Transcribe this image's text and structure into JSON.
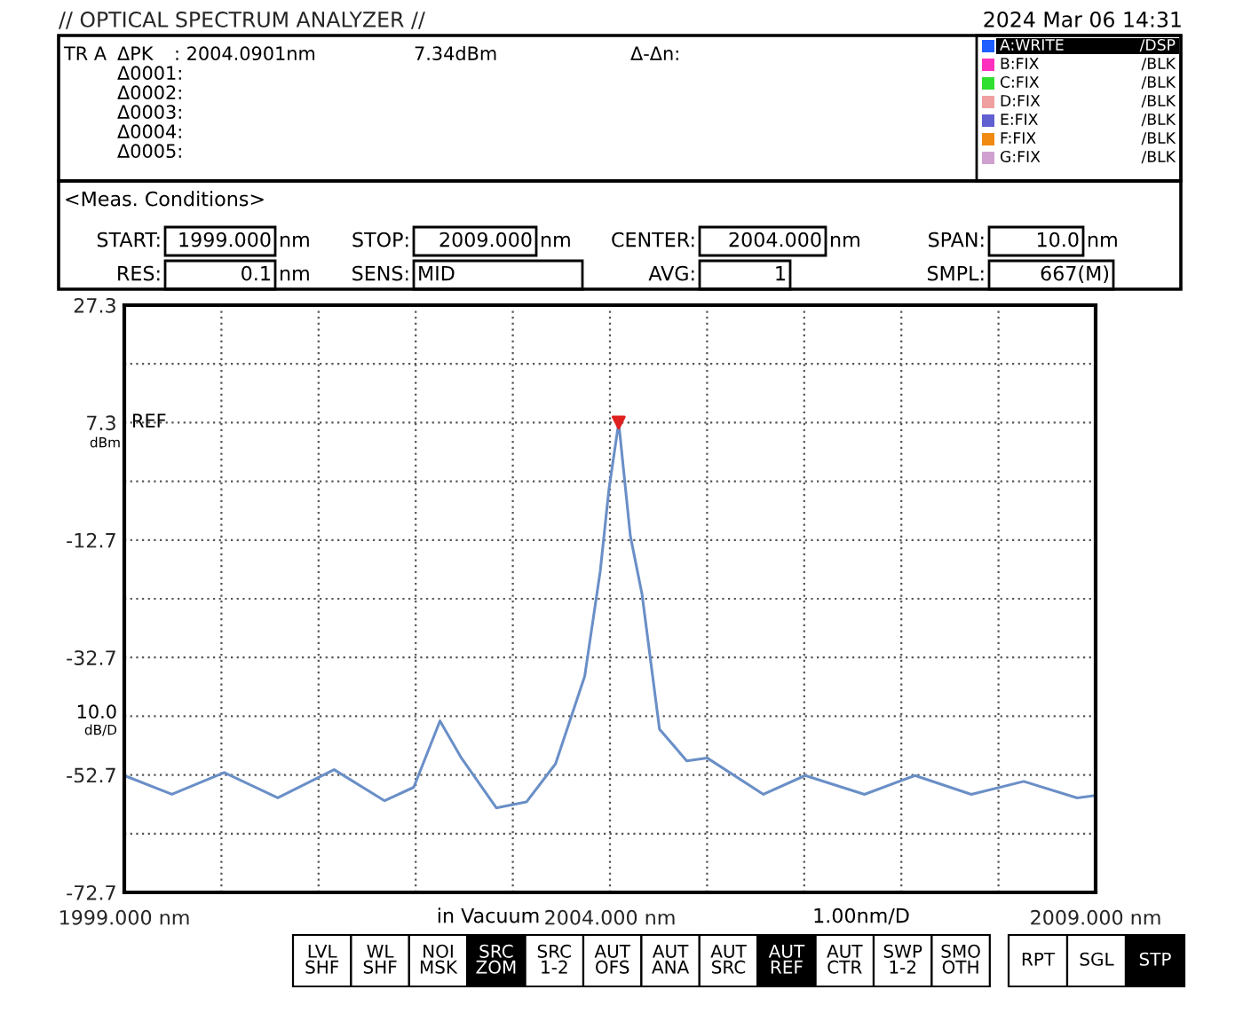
{
  "chart_data": {
    "type": "line",
    "title": "// OPTICAL SPECTRUM ANALYZER //",
    "annotations": [
      "2024 Mar 06 14:31",
      "TR A",
      "ΔPK",
      ": 2004.0901nm",
      "7.34dBm",
      "Δ-Δn:",
      "Δ0001:",
      "Δ0002:",
      "Δ0003:",
      "Δ0004:",
      "Δ0005:",
      "A:WRITE",
      "/DSP",
      "B:FIX",
      "/BLK",
      "C:FIX",
      "/BLK",
      "D:FIX",
      "/BLK",
      "E:FIX",
      "/BLK",
      "F:FIX",
      "/BLK",
      "G:FIX",
      "/BLK",
      "<Meas. Conditions>",
      "START:",
      "1999.000",
      "nm",
      "STOP:",
      "2009.000",
      "nm",
      "CENTER:",
      "2004.000",
      "nm",
      "SPAN:",
      "10.0",
      "nm",
      "RES:",
      "0.1",
      "nm",
      "SENS:",
      "MID",
      "AVG:",
      "1",
      "SMPL:",
      "667(M)",
      "REF",
      "dBm",
      "10.0",
      "dB/D",
      "in Vacuum",
      "1.00nm/D",
      "LVL\nSHF",
      "WL\nSHF",
      "NOI\nMSK",
      "SRC\nZOM",
      "SRC\n1-2",
      "AUT\nOFS",
      "AUT\nANA",
      "AUT\nSRC",
      "AUT\nREF",
      "AUT\nCTR",
      "SWP\n1-2",
      "SMO\nOTH",
      "RPT",
      "SGL",
      "STP"
    ],
    "series": [
      {
        "color": "#6a8fc7",
        "x": [
          1999.0,
          1999.49,
          2000.03,
          2000.58,
          2001.16,
          2001.68,
          2001.98,
          2002.25,
          2002.47,
          2002.83,
          2003.14,
          2003.44,
          2003.74,
          2003.9,
          2003.99,
          2004.09,
          2004.21,
          2004.33,
          2004.51,
          2004.79,
          2005.0,
          2005.58,
          2006.01,
          2006.62,
          2007.14,
          2007.72,
          2008.26,
          2008.81,
          2009.0
        ],
        "values": [
          -52.8,
          -56.0,
          -52.3,
          -56.6,
          -51.8,
          -57.1,
          -54.8,
          -43.5,
          -49.8,
          -58.3,
          -57.3,
          -50.8,
          -35.9,
          -18.0,
          -4.0,
          7.3,
          -12.0,
          -21.9,
          -44.9,
          -50.3,
          -49.8,
          -56.0,
          -52.8,
          -56.0,
          -52.8,
          -56.0,
          -53.8,
          -56.6,
          -56.2
        ]
      },
      {
        "type": "scatter",
        "color": "#e02020",
        "marker": "triangle",
        "x": [
          2004.09
        ],
        "values": [
          7.3
        ]
      }
    ],
    "xlim": [
      1999,
      2009
    ],
    "ylim": [
      -72.7,
      27.3
    ],
    "xticks": [
      {
        "value": 1999,
        "label": "1999.000 nm"
      },
      {
        "value": 2000,
        "label": null
      },
      {
        "value": 2001,
        "label": null
      },
      {
        "value": 2002,
        "label": null
      },
      {
        "value": 2003,
        "label": null
      },
      {
        "value": 2004,
        "label": "2004.000 nm"
      },
      {
        "value": 2005,
        "label": null
      },
      {
        "value": 2006,
        "label": null
      },
      {
        "value": 2007,
        "label": null
      },
      {
        "value": 2008,
        "label": null
      },
      {
        "value": 2009,
        "label": "2009.000 nm"
      }
    ],
    "yticks": [
      -72.7,
      {
        "value": -62.7,
        "label": null
      },
      -52.7,
      {
        "value": -42.7,
        "label": null
      },
      -32.7,
      {
        "value": -22.7,
        "label": null
      },
      -12.7,
      {
        "value": -2.7,
        "label": null
      },
      7.3,
      {
        "value": 17.3,
        "label": null
      },
      27.3
    ],
    "grid": true
  }
}
